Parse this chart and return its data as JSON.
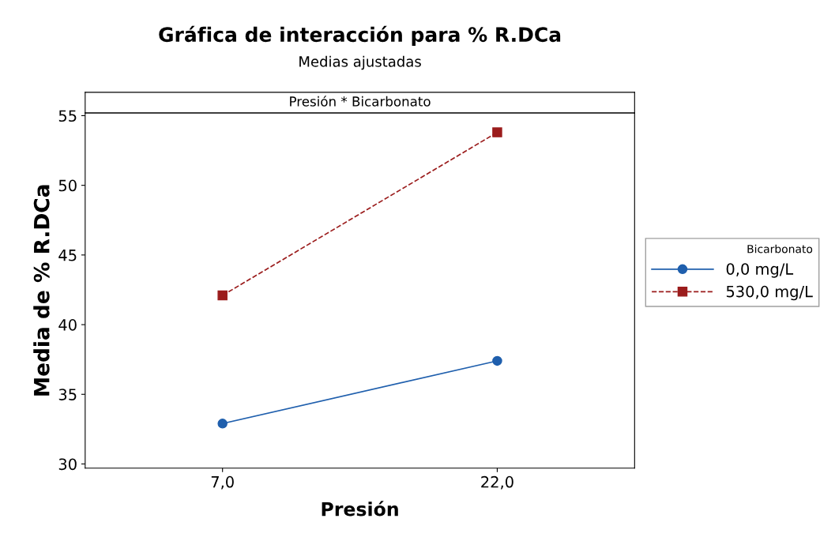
{
  "chart_data": {
    "type": "line",
    "title": "Gráfica de interacción para % R.DCa",
    "subtitle": "Medias ajustadas",
    "annotations": [
      "Presión * Bicarbonato"
    ],
    "xlabel": "Presión",
    "ylabel": "Media de % R.DCa",
    "legend_title": "Bicarbonato",
    "categories": [
      "7,0",
      "22,0"
    ],
    "series": [
      {
        "name": "0,0 mg/L",
        "color": "#1f5fad",
        "values": [
          32.9,
          37.4
        ],
        "marker": "circle",
        "line_style": "solid"
      },
      {
        "name": "530,0 mg/L",
        "color": "#9b1c1c",
        "values": [
          42.1,
          53.8
        ],
        "marker": "square",
        "line_style": "dashed"
      }
    ],
    "ylim": [
      29.7,
      55.2
    ],
    "yticks": [
      30,
      35,
      40,
      45,
      50,
      55
    ],
    "grid": false,
    "legend": "right"
  }
}
